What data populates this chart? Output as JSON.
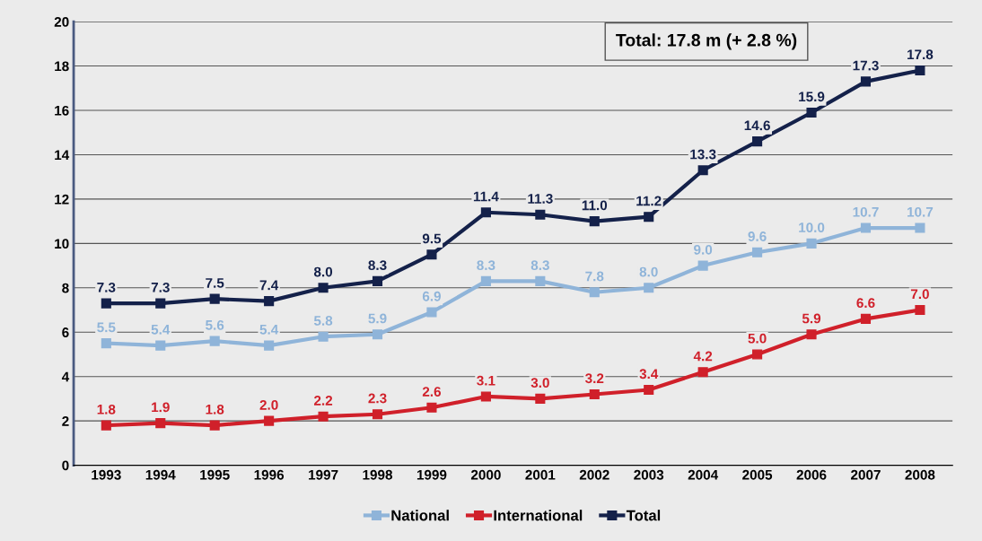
{
  "chart_data": {
    "type": "line",
    "categories": [
      "1993",
      "1994",
      "1995",
      "1996",
      "1997",
      "1998",
      "1999",
      "2000",
      "2001",
      "2002",
      "2003",
      "2004",
      "2005",
      "2006",
      "2007",
      "2008"
    ],
    "series": [
      {
        "name": "National",
        "color": "#8fb4d9",
        "values": [
          5.5,
          5.4,
          5.6,
          5.4,
          5.8,
          5.9,
          6.9,
          8.3,
          8.3,
          7.8,
          8.0,
          9.0,
          9.6,
          10.0,
          10.7,
          10.7
        ],
        "value_labels": [
          "5.5",
          "5.4",
          "5.6",
          "5.4",
          "5.8",
          "5.9",
          "6.9",
          "8.3",
          "8.3",
          "7.8",
          "8.0",
          "9.0",
          "9.6",
          "10.0",
          "10.7",
          "10.7"
        ]
      },
      {
        "name": "International",
        "color": "#d0202a",
        "values": [
          1.8,
          1.9,
          1.8,
          2.0,
          2.2,
          2.3,
          2.6,
          3.1,
          3.0,
          3.2,
          3.4,
          4.2,
          5.0,
          5.9,
          6.6,
          7.0
        ],
        "value_labels": [
          "1.8",
          "1.9",
          "1.8",
          "2.0",
          "2.2",
          "2.3",
          "2.6",
          "3.1",
          "3.0",
          "3.2",
          "3.4",
          "4.2",
          "5.0",
          "5.9",
          "6.6",
          "7.0"
        ]
      },
      {
        "name": "Total",
        "color": "#14214a",
        "values": [
          7.3,
          7.3,
          7.5,
          7.4,
          8.0,
          8.3,
          9.5,
          11.4,
          11.3,
          11.0,
          11.2,
          13.3,
          14.6,
          15.9,
          17.3,
          17.8
        ],
        "value_labels": [
          "7.3",
          "7.3",
          "7.5",
          "7.4",
          "8.0",
          "8.3",
          "9.5",
          "11.4",
          "11.3",
          "11.0",
          "11.2",
          "13.3",
          "14.6",
          "15.9",
          "17.3",
          "17.8"
        ]
      }
    ],
    "ylim": [
      0,
      20
    ],
    "yticks": [
      0,
      2,
      4,
      6,
      8,
      10,
      12,
      14,
      16,
      18,
      20
    ],
    "grid": "y",
    "legend": "bottom",
    "marker": "square",
    "line_style": "solid",
    "annotations": [
      "Total: 17.8 m (+ 2.8 %)"
    ]
  }
}
